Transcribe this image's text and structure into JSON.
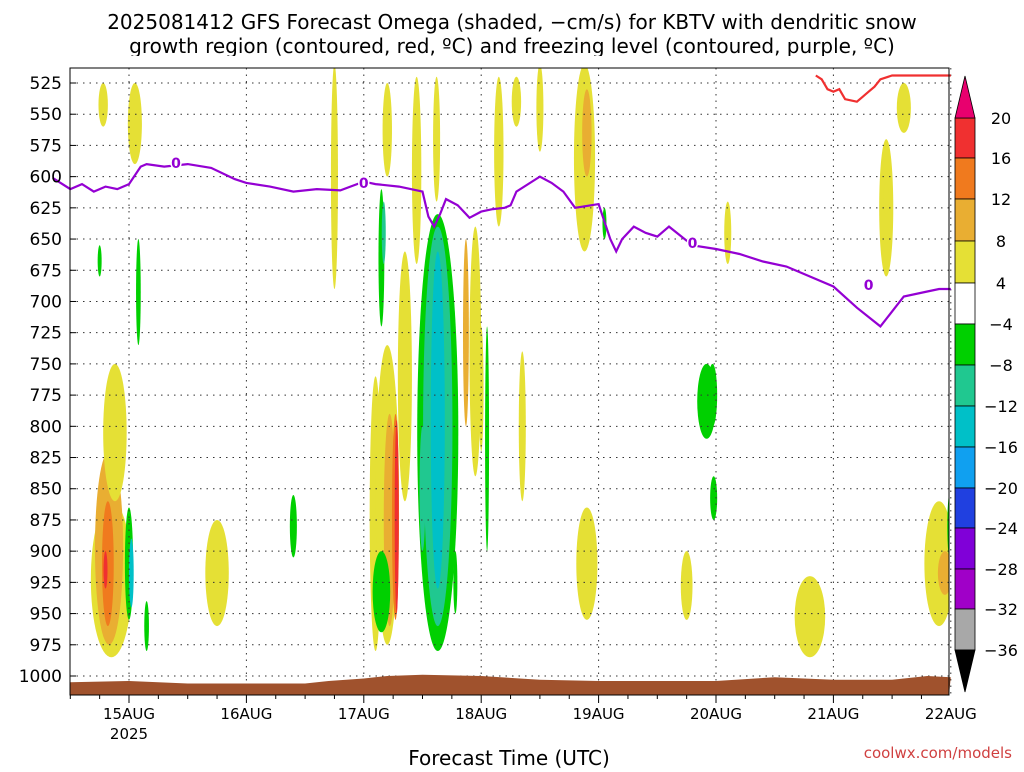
{
  "chart_data": {
    "type": "heatmap",
    "title_line1": "2025081412 GFS Forecast Omega (shaded, −cm/s) for KBTV with dendritic snow",
    "title_line2": "growth region (contoured, red, ºC) and freezing level (contoured, purple, ºC)",
    "xlabel": "Forecast Time (UTC)",
    "credit": "coolwx.com/models",
    "x_ticks": [
      "15AUG",
      "16AUG",
      "17AUG",
      "18AUG",
      "19AUG",
      "20AUG",
      "21AUG",
      "22AUG"
    ],
    "x_year": "2025",
    "y_ticks": [
      525,
      550,
      575,
      600,
      625,
      650,
      675,
      700,
      725,
      750,
      775,
      800,
      825,
      850,
      875,
      900,
      925,
      950,
      975,
      1000
    ],
    "y_range_hpa": [
      1000,
      525
    ],
    "x_range_days_from_15aug": [
      -0.65,
      7.0
    ],
    "colorbar_labels": [
      "20",
      "16",
      "12",
      "8",
      "4",
      "−4",
      "−8",
      "−12",
      "−16",
      "−20",
      "−24",
      "−28",
      "−32",
      "−36"
    ],
    "colorbar_colors": [
      "#f03030",
      "#f07a1e",
      "#e9ae32",
      "#e5e035",
      "#ffffff",
      "#00d000",
      "#20c890",
      "#00c0c8",
      "#10a0f0",
      "#2040e0",
      "#8000d8",
      "#a000c8",
      "#a8a8a8"
    ],
    "freezing_level_label": "0",
    "freezing_level": {
      "name": "freezing level",
      "day": [
        -0.65,
        -0.5,
        -0.4,
        -0.3,
        -0.2,
        -0.1,
        0.0,
        0.1,
        0.15,
        0.3,
        0.5,
        0.7,
        0.9,
        1.0,
        1.2,
        1.4,
        1.6,
        1.8,
        2.0,
        2.1,
        2.3,
        2.5,
        2.55,
        2.6,
        2.65,
        2.7,
        2.8,
        2.9,
        3.0,
        3.1,
        3.2,
        3.25,
        3.3,
        3.5,
        3.6,
        3.7,
        3.8,
        4.0,
        4.1,
        4.15,
        4.2,
        4.3,
        4.4,
        4.5,
        4.6,
        4.8,
        5.0,
        5.2,
        5.4,
        5.6,
        5.8,
        6.0,
        6.2,
        6.4,
        6.6,
        6.8,
        6.9,
        7.0
      ],
      "hpa": [
        601,
        610,
        606,
        612,
        608,
        610,
        606,
        592,
        590,
        592,
        590,
        593,
        602,
        605,
        608,
        612,
        610,
        611,
        604,
        606,
        608,
        612,
        632,
        640,
        630,
        618,
        623,
        633,
        628,
        626,
        625,
        623,
        612,
        600,
        605,
        612,
        625,
        622,
        650,
        660,
        650,
        640,
        645,
        648,
        640,
        655,
        658,
        662,
        668,
        672,
        680,
        688,
        705,
        720,
        696,
        692,
        690,
        690
      ]
    },
    "dgz_contour": {
      "name": "dendritic snow growth region",
      "day": [
        5.85,
        5.9,
        5.95,
        6.0,
        6.05,
        6.1,
        6.2,
        6.25,
        6.3,
        6.35,
        6.4,
        6.5,
        7.0
      ],
      "hpa": [
        519,
        522,
        530,
        532,
        530,
        538,
        540,
        536,
        532,
        528,
        522,
        519,
        519
      ]
    }
  }
}
